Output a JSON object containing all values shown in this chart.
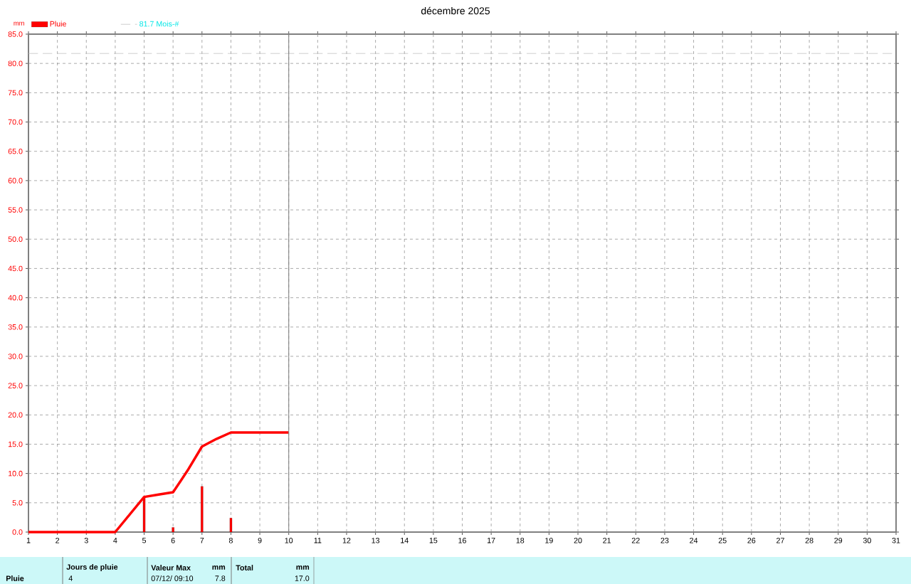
{
  "chart_data": {
    "type": "bar",
    "title": "décembre 2025",
    "ylabel": "mm",
    "series": [
      {
        "name": "Pluie",
        "color": "#ff0000",
        "x": [
          5,
          6,
          7,
          8
        ],
        "values": [
          6.0,
          0.8,
          7.8,
          2.4
        ]
      },
      {
        "type": "line",
        "color": "#ff0000",
        "x": [
          1,
          2,
          3,
          4,
          5,
          5.5,
          6,
          6.5,
          7,
          7.5,
          8,
          9,
          10
        ],
        "values": [
          0,
          0,
          0,
          0,
          6.0,
          6.4,
          6.8,
          10.5,
          14.6,
          15.9,
          17.0,
          17.0,
          17.0
        ]
      }
    ],
    "xlim": [
      1,
      31
    ],
    "xticks": [
      1,
      2,
      3,
      4,
      5,
      6,
      7,
      8,
      9,
      10,
      11,
      12,
      13,
      14,
      15,
      16,
      17,
      18,
      19,
      20,
      21,
      22,
      23,
      24,
      25,
      26,
      27,
      28,
      29,
      30,
      31
    ],
    "ylim": [
      0,
      85
    ],
    "yticks": [
      {
        "value": 0,
        "label": "0.0"
      },
      {
        "value": 5,
        "label": "5.0"
      },
      {
        "value": 10,
        "label": "10.0"
      },
      {
        "value": 15,
        "label": "15.0"
      },
      {
        "value": 20,
        "label": "20.0"
      },
      {
        "value": 25,
        "label": "25.0"
      },
      {
        "value": 30,
        "label": "30.0"
      },
      {
        "value": 35,
        "label": "35.0"
      },
      {
        "value": 40,
        "label": "40.0"
      },
      {
        "value": 45,
        "label": "45.0"
      },
      {
        "value": 50,
        "label": "50.0"
      },
      {
        "value": 55,
        "label": "55.0"
      },
      {
        "value": 60,
        "label": "60.0"
      },
      {
        "value": 65,
        "label": "65.0"
      },
      {
        "value": 70,
        "label": "70.0"
      },
      {
        "value": 75,
        "label": "75.0"
      },
      {
        "value": 80,
        "label": "80.0"
      },
      {
        "value": 85,
        "label": "85.0"
      }
    ],
    "ref_lines": [
      {
        "axis": "y",
        "value": 81.7,
        "label": "81.7 Mois-#",
        "color": "#c0c0c0",
        "line_style": "dashed"
      },
      {
        "axis": "x",
        "value": 10,
        "color": "#808080",
        "line_style": "solid"
      }
    ],
    "grid": true,
    "legend": "top left",
    "annotations": [
      "Pluie",
      "Jours de pluie",
      "4",
      "Valeur Max",
      "mm",
      "07/12/  09:10",
      "7.8",
      "Total",
      "mm",
      "17.0"
    ]
  }
}
